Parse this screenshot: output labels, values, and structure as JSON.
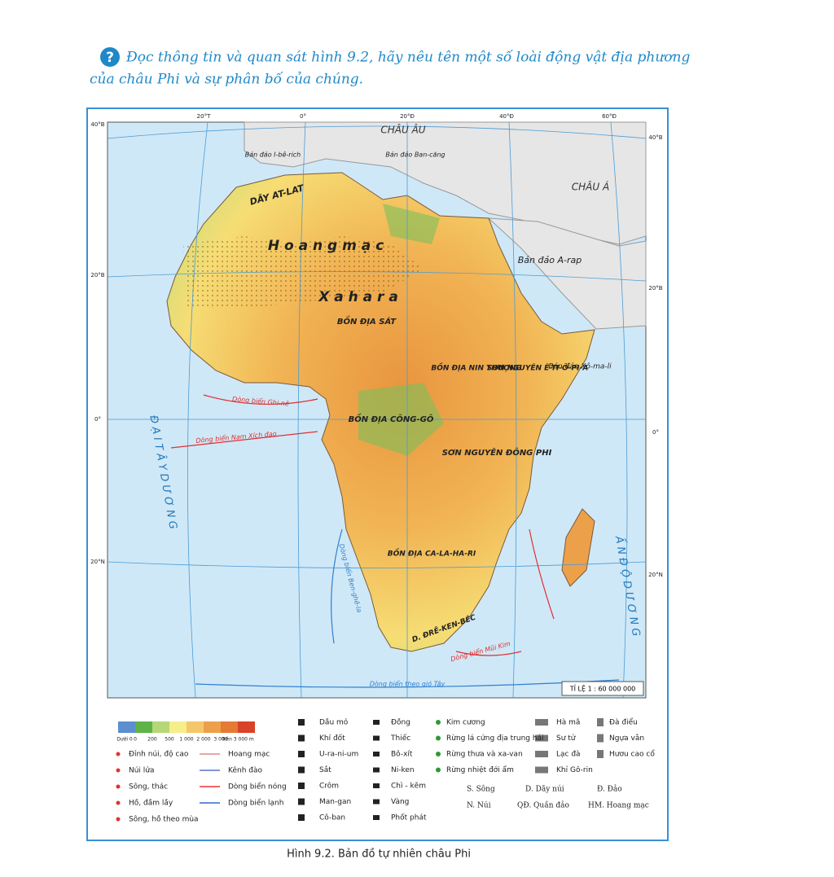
{
  "question": {
    "lines": [
      "Đọc thông tin và quan sát hình 9.2, hãy nêu tên một số loài động vật địa phương",
      "của châu Phi và sự phân bố của chúng."
    ]
  },
  "map": {
    "graticule": {
      "left": [
        "40°B",
        "20°B",
        "0°",
        "20°N"
      ],
      "right": [
        "40°B",
        "20°B",
        "0°",
        "20°N"
      ],
      "top": [
        "20°T",
        "0°",
        "20°Đ",
        "40°Đ",
        "60°Đ"
      ]
    },
    "labels": [
      "CHÂU ÂU",
      "CHÂU Á",
      "Bán đảo A-rap",
      "DÃY AT-LAT",
      "H o a n g   m ạ c",
      "X a   h a   r a",
      "BỒN ĐỊA SÁT",
      "BỒN ĐỊA NIN THƯỢNG",
      "SƠN NGUYÊN Ê-TI-Ô-PI-A",
      "BỒN ĐỊA CÔNG-GÔ",
      "SƠN NGUYÊN ĐÔNG PHI",
      "BỒN ĐỊA CA-LA-HA-RI",
      "D. ĐRÊ-KEN-BÉC",
      "Đ Ạ I   T Â Y   D Ư Ơ N G",
      "Ấ N   Đ Ộ   D Ư Ơ N G",
      "Dòng biển Ghi-nê",
      "Dòng biển Nam Xích đạo",
      "Dòng biển Ben-ghê-la",
      "Dòng biển Mũi Kim",
      "Dòng biển theo gió Tây",
      "Bán đảo Xô-ma-li",
      "Bán đảo Ban-căng",
      "Bán đảo I-bê-rich"
    ],
    "scale": "TỈ LỆ 1 : 60 000 000"
  },
  "legend": {
    "elevation": {
      "labels": [
        "Dưới 0",
        "0",
        "200",
        "500",
        "1 000",
        "2 000",
        "3 000",
        "Trên 3 000 m"
      ],
      "colors": [
        "#5b8fd0",
        "#5fb24a",
        "#b6d777",
        "#f6ee8a",
        "#f4c86a",
        "#eda04a",
        "#e47a34",
        "#d8432a"
      ]
    },
    "physical": [
      "Đỉnh núi, độ cao",
      "Núi lửa",
      "Sông, thác",
      "Hồ, đầm lầy",
      "Sông, hồ theo mùa"
    ],
    "features": [
      "Hoang mạc",
      "Kênh đào",
      "Dòng biển nóng",
      "Dòng biển lạnh"
    ],
    "minerals_1": [
      "Dầu mỏ",
      "Khí đốt",
      "U-ra-ni-um",
      "Sắt",
      "Crôm",
      "Man-gan",
      "Cô-ban"
    ],
    "minerals_2": [
      "Đồng",
      "Thiếc",
      "Bô-xít",
      "Ni-ken",
      "Chì - kẽm",
      "Vàng",
      "Phốt phát"
    ],
    "vegetation": [
      "Kim cương",
      "Rừng lá cứng địa trung hải",
      "Rừng thưa và xa-van",
      "Rừng nhiệt đới ẩm"
    ],
    "animals_1": [
      "Hà mã",
      "Sư tử",
      "Lạc đà",
      "Khỉ Gô-rin"
    ],
    "animals_2": [
      "Đà điểu",
      "Ngựa vằn",
      "Hươu cao cổ"
    ],
    "abbreviations": [
      "S. Sông",
      "D. Dãy núi",
      "Đ. Đảo",
      "N. Núi",
      "QĐ. Quần đảo",
      "HM. Hoang mạc"
    ]
  },
  "caption": "Hình 9.2. Bản đồ tự nhiên châu Phi"
}
